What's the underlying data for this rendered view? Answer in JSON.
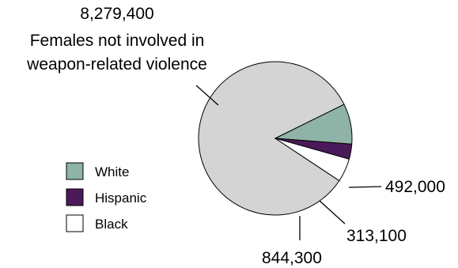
{
  "chart_data": {
    "type": "pie",
    "slices": [
      {
        "name": "Females not involved in weapon-related violence",
        "value": 8279400,
        "label": "8,279,400",
        "color": "#d4d4d4"
      },
      {
        "name": "White",
        "value": 844300,
        "label": "844,300",
        "color": "#8fb3a6"
      },
      {
        "name": "Hispanic",
        "value": 313100,
        "label": "313,100",
        "color": "#4b1a5a"
      },
      {
        "name": "Black",
        "value": 492000,
        "label": "492,000",
        "color": "#ffffff"
      }
    ],
    "annotation_lines": [
      "Females not involved in",
      "weapon-related violence"
    ],
    "legend": [
      {
        "name": "White",
        "color": "#8fb3a6"
      },
      {
        "name": "Hispanic",
        "color": "#4b1a5a"
      },
      {
        "name": "Black",
        "color": "#ffffff"
      }
    ]
  }
}
